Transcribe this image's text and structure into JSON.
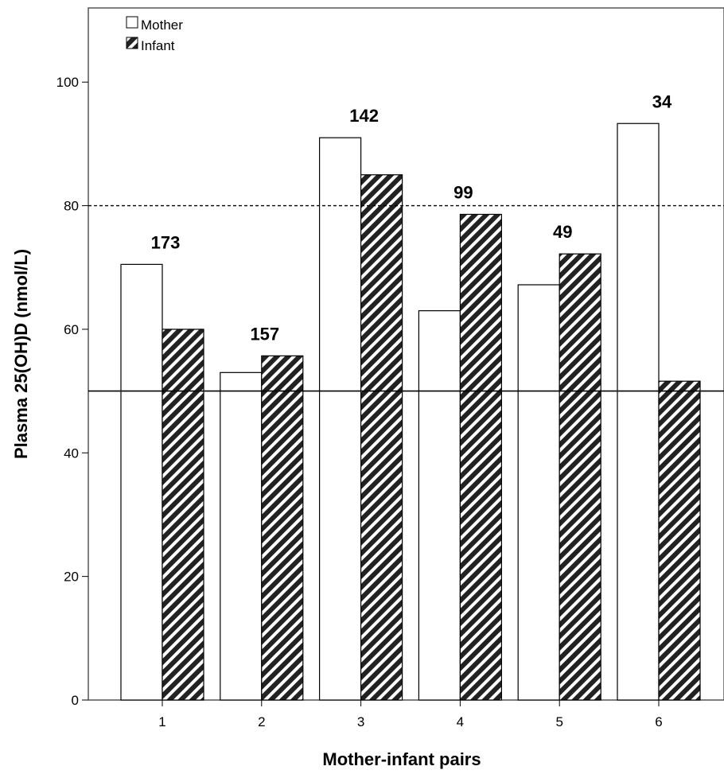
{
  "chart_data": {
    "type": "bar",
    "categories": [
      "1",
      "2",
      "3",
      "4",
      "5",
      "6"
    ],
    "series": [
      {
        "name": "Mother",
        "values": [
          70.5,
          53,
          91,
          63,
          67.2,
          93.3
        ],
        "fill": "#ffffff",
        "pattern": "none"
      },
      {
        "name": "Infant",
        "values": [
          60,
          55.7,
          85,
          78.6,
          72.2,
          51.6
        ],
        "fill": "#222222",
        "pattern": "diagonal-hatch"
      }
    ],
    "annotations": [
      "173",
      "157",
      "142",
      "99",
      "49",
      "34"
    ],
    "annotation_values": [
      173,
      157,
      142,
      99,
      49,
      34
    ],
    "xlabel": "Mother-infant pairs",
    "ylabel": "Plasma 25(OH)D (nmol/L)",
    "ylim": [
      0,
      112
    ],
    "yticks": [
      0,
      20,
      40,
      60,
      80,
      100
    ],
    "reference_lines": [
      {
        "value": 80,
        "style": "dashed"
      },
      {
        "value": 50,
        "style": "solid"
      }
    ],
    "legend": {
      "position": "top-left"
    },
    "grid": false
  }
}
